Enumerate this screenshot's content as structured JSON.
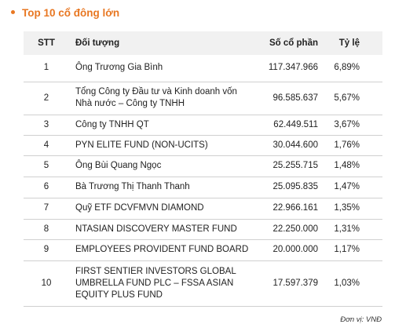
{
  "title": "Top 10 cổ đông lớn",
  "table": {
    "header": [
      "STT",
      "Đối tượng",
      "Số cổ phần",
      "Tỷ lệ"
    ],
    "rows": [
      [
        "1",
        "Ông Trương Gia Bình",
        "117.347.966",
        "6,89%"
      ],
      [
        "2",
        "Tổng Công ty Đầu tư và Kinh doanh vốn Nhà nước – Công ty TNHH",
        "96.585.637",
        "5,67%"
      ],
      [
        "3",
        "Công ty TNHH QT",
        "62.449.511",
        "3,67%"
      ],
      [
        "4",
        "PYN ELITE FUND (NON-UCITS)",
        "30.044.600",
        "1,76%"
      ],
      [
        "5",
        "Ông Bùi Quang Ngọc",
        "25.255.715",
        "1,48%"
      ],
      [
        "6",
        "Bà Trương Thị Thanh Thanh",
        "25.095.835",
        "1,47%"
      ],
      [
        "7",
        "Quỹ ETF DCVFMVN DIAMOND",
        "22.966.161",
        "1,35%"
      ],
      [
        "8",
        "NTASIAN DISCOVERY MASTER FUND",
        "22.250.000",
        "1,31%"
      ],
      [
        "9",
        "EMPLOYEES PROVIDENT FUND BOARD",
        "20.000.000",
        "1,17%"
      ],
      [
        "10",
        "FIRST SENTIER INVESTORS GLOBAL UMBRELLA FUND PLC – FSSA ASIAN EQUITY PLUS FUND",
        "17.597.379",
        "1,03%"
      ]
    ]
  },
  "footer": "Đơn vị: VNĐ"
}
